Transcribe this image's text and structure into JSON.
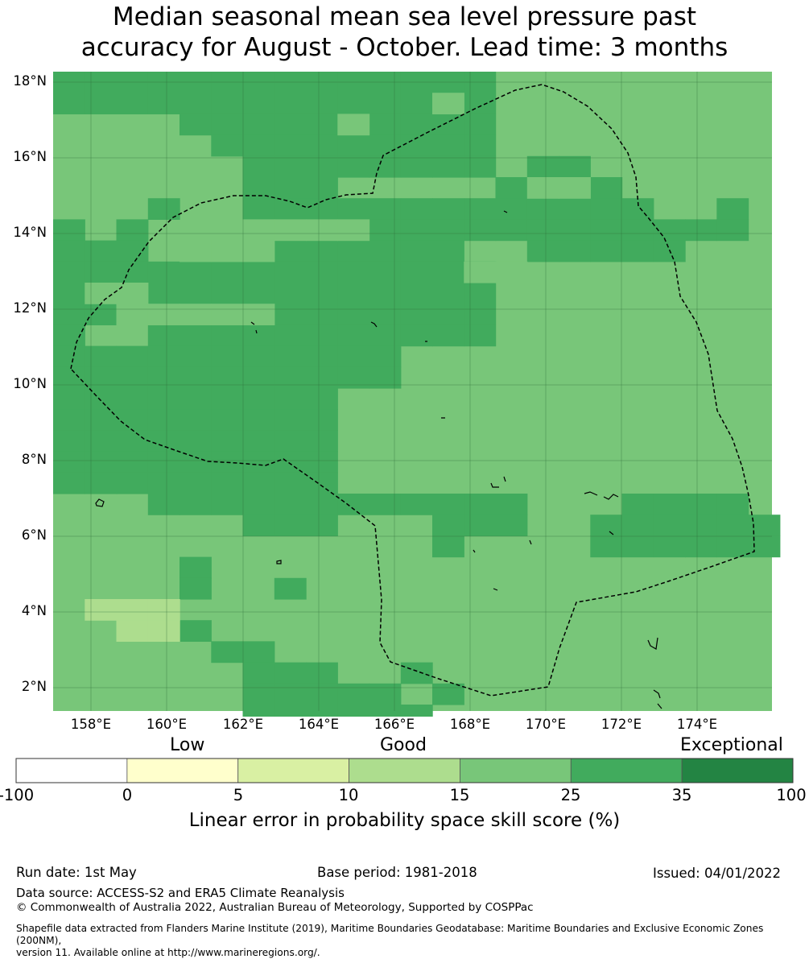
{
  "title_line1": "Median seasonal mean sea level pressure past",
  "title_line2": "accuracy for August - October. Lead time: 3 months",
  "map": {
    "lat_labels": [
      "18°N",
      "16°N",
      "14°N",
      "12°N",
      "10°N",
      "8°N",
      "6°N",
      "4°N",
      "2°N"
    ],
    "lon_labels": [
      "158°E",
      "160°E",
      "162°E",
      "164°E",
      "166°E",
      "168°E",
      "170°E",
      "172°E",
      "174°E"
    ],
    "boundary_style": "dashed black"
  },
  "legend": {
    "category_labels": [
      "Low",
      "Good",
      "Exceptional"
    ],
    "tick_labels": [
      "-100",
      "0",
      "5",
      "10",
      "15",
      "25",
      "35",
      "100"
    ],
    "colors": [
      "#ffffff",
      "#ffffcc",
      "#d9f0a3",
      "#addd8e",
      "#78c679",
      "#41ab5d",
      "#238443"
    ],
    "title": "Linear error in probability space skill score (%)"
  },
  "footer": {
    "run_date": "Run date: 1st May",
    "base_period": "Base period: 1981-2018",
    "issued": "Issued: 04/01/2022",
    "data_source": "Data source: ACCESS-S2 and ERA5 Climate Reanalysis",
    "copyright": "© Commonwealth of Australia 2022, Australian Bureau of Meteorology, Supported by COSPPac",
    "shapefile_line1": "Shapefile data extracted from Flanders Marine Institute (2019), Maritime Boundaries Geodatabase: Maritime Boundaries and Exclusive Economic Zones (200NM),",
    "shapefile_line2": "version 11. Available online at http://www.marineregions.org/."
  }
}
